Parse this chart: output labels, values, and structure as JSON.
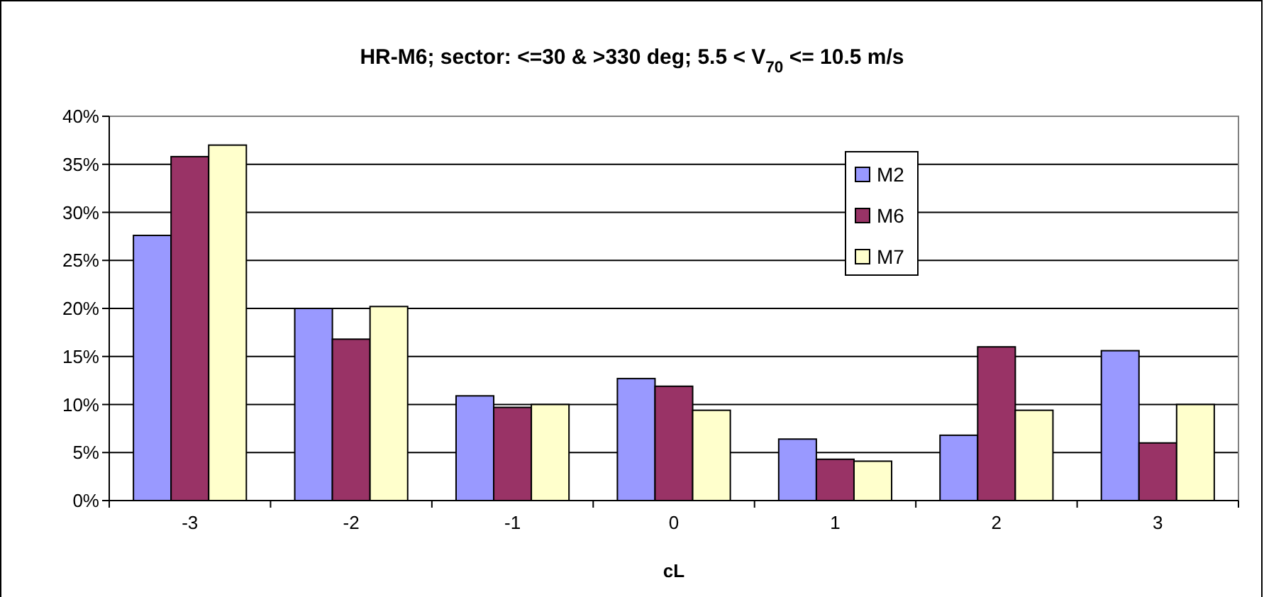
{
  "chart_data": {
    "type": "bar",
    "title": "HR-M6; sector: <=30 & >330 deg; 5.5 < V$_{70}$ <= 10.5 m/s",
    "xlabel": "cL",
    "categories": [
      "-3",
      "-2",
      "-1",
      "0",
      "1",
      "2",
      "3"
    ],
    "series": [
      {
        "name": "M2",
        "color": "#9999ff",
        "values": [
          27.6,
          20.0,
          10.9,
          12.7,
          6.4,
          6.8,
          15.6
        ]
      },
      {
        "name": "M6",
        "color": "#993366",
        "values": [
          35.8,
          16.8,
          9.7,
          11.9,
          4.3,
          16.0,
          6.0
        ]
      },
      {
        "name": "M7",
        "color": "#ffffcc",
        "values": [
          37.0,
          20.2,
          10.0,
          9.4,
          4.1,
          9.4,
          10.0
        ]
      }
    ],
    "ylim": [
      0,
      40
    ],
    "yticks": [
      {
        "value": 0,
        "label": "0%"
      },
      {
        "value": 5,
        "label": "5%"
      },
      {
        "value": 10,
        "label": "10%"
      },
      {
        "value": 15,
        "label": "15%"
      },
      {
        "value": 20,
        "label": "20%"
      },
      {
        "value": 25,
        "label": "25%"
      },
      {
        "value": 30,
        "label": "30%"
      },
      {
        "value": 35,
        "label": "35%"
      },
      {
        "value": 40,
        "label": "40%"
      }
    ],
    "grid": "y",
    "legend": "top right"
  }
}
